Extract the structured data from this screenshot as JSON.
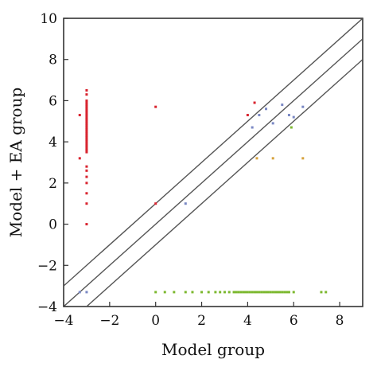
{
  "chart_data": {
    "type": "scatter",
    "xlabel": "Model group",
    "ylabel": "Model + EA group",
    "xlim": [
      -4,
      9
    ],
    "ylim": [
      -4,
      10
    ],
    "x_ticks": [
      -4,
      -2,
      0,
      2,
      4,
      6,
      8
    ],
    "y_ticks": [
      -4,
      -2,
      0,
      2,
      4,
      6,
      8,
      10
    ],
    "grid": false,
    "colors": {
      "frame": "#333333",
      "red": "#d9242f",
      "green": "#7cb82f",
      "blue": "#7a88c4",
      "orange": "#d7a23c",
      "line": "#555555"
    },
    "reference_lines": [
      {
        "intercept": 1,
        "slope": 1
      },
      {
        "intercept": 0,
        "slope": 1
      },
      {
        "intercept": -1,
        "slope": 1
      }
    ],
    "series": [
      {
        "color_key": "red",
        "points": [
          [
            -3.0,
            6.5
          ],
          [
            -3.0,
            6.3
          ],
          [
            -3.0,
            6.0
          ],
          [
            -3.0,
            5.9
          ],
          [
            -3.0,
            5.8
          ],
          [
            -3.0,
            5.7
          ],
          [
            -3.0,
            5.6
          ],
          [
            -3.0,
            5.5
          ],
          [
            -3.0,
            5.4
          ],
          [
            -3.0,
            5.3
          ],
          [
            -3.0,
            5.2
          ],
          [
            -3.0,
            5.1
          ],
          [
            -3.0,
            5.0
          ],
          [
            -3.0,
            4.9
          ],
          [
            -3.0,
            4.8
          ],
          [
            -3.0,
            4.7
          ],
          [
            -3.0,
            4.6
          ],
          [
            -3.0,
            4.5
          ],
          [
            -3.0,
            4.4
          ],
          [
            -3.0,
            4.3
          ],
          [
            -3.0,
            4.2
          ],
          [
            -3.0,
            4.1
          ],
          [
            -3.0,
            4.0
          ],
          [
            -3.0,
            3.9
          ],
          [
            -3.0,
            3.8
          ],
          [
            -3.0,
            3.7
          ],
          [
            -3.0,
            3.6
          ],
          [
            -3.0,
            3.5
          ],
          [
            -3.0,
            2.8
          ],
          [
            -3.0,
            2.6
          ],
          [
            -3.0,
            2.3
          ],
          [
            -3.0,
            2.0
          ],
          [
            -3.0,
            1.5
          ],
          [
            -3.0,
            1.0
          ],
          [
            -3.0,
            0.0
          ],
          [
            -3.3,
            5.3
          ],
          [
            -3.3,
            3.2
          ],
          [
            0.0,
            5.7
          ],
          [
            0.0,
            1.0
          ],
          [
            4.0,
            5.3
          ],
          [
            4.3,
            5.9
          ]
        ]
      },
      {
        "color_key": "green",
        "points": [
          [
            0.0,
            -3.3
          ],
          [
            0.4,
            -3.3
          ],
          [
            0.8,
            -3.3
          ],
          [
            1.3,
            -3.3
          ],
          [
            1.6,
            -3.3
          ],
          [
            2.0,
            -3.3
          ],
          [
            2.3,
            -3.3
          ],
          [
            2.6,
            -3.3
          ],
          [
            2.8,
            -3.3
          ],
          [
            3.0,
            -3.3
          ],
          [
            3.2,
            -3.3
          ],
          [
            3.4,
            -3.3
          ],
          [
            3.5,
            -3.3
          ],
          [
            3.6,
            -3.3
          ],
          [
            3.7,
            -3.3
          ],
          [
            3.8,
            -3.3
          ],
          [
            3.9,
            -3.3
          ],
          [
            4.0,
            -3.3
          ],
          [
            4.1,
            -3.3
          ],
          [
            4.2,
            -3.3
          ],
          [
            4.3,
            -3.3
          ],
          [
            4.4,
            -3.3
          ],
          [
            4.5,
            -3.3
          ],
          [
            4.6,
            -3.3
          ],
          [
            4.7,
            -3.3
          ],
          [
            4.8,
            -3.3
          ],
          [
            4.9,
            -3.3
          ],
          [
            5.0,
            -3.3
          ],
          [
            5.1,
            -3.3
          ],
          [
            5.2,
            -3.3
          ],
          [
            5.3,
            -3.3
          ],
          [
            5.4,
            -3.3
          ],
          [
            5.5,
            -3.3
          ],
          [
            5.6,
            -3.3
          ],
          [
            5.7,
            -3.3
          ],
          [
            5.8,
            -3.3
          ],
          [
            6.0,
            -3.3
          ],
          [
            7.2,
            -3.3
          ],
          [
            7.4,
            -3.3
          ],
          [
            5.9,
            4.7
          ]
        ]
      },
      {
        "color_key": "blue",
        "points": [
          [
            -3.3,
            -3.3
          ],
          [
            -3.0,
            -3.3
          ],
          [
            1.3,
            1.0
          ],
          [
            4.2,
            4.7
          ],
          [
            4.5,
            5.3
          ],
          [
            4.8,
            5.6
          ],
          [
            5.1,
            4.9
          ],
          [
            5.5,
            5.8
          ],
          [
            5.8,
            5.3
          ],
          [
            6.0,
            5.2
          ],
          [
            6.4,
            5.7
          ]
        ]
      },
      {
        "color_key": "orange",
        "points": [
          [
            4.4,
            3.2
          ],
          [
            5.1,
            3.2
          ],
          [
            6.4,
            3.2
          ]
        ]
      }
    ]
  }
}
